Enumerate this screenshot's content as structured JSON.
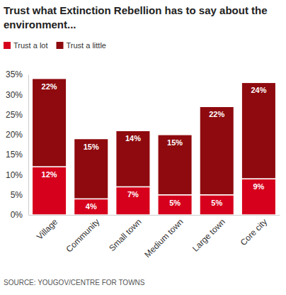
{
  "chart_data": {
    "type": "bar",
    "title": "Trust what Extinction Rebellion has to say about the environment...",
    "source": "SOURCE: YOUGOV/CENTRE FOR TOWNS",
    "categories": [
      "Village",
      "Community",
      "Small town",
      "Medium town",
      "Large town",
      "Core city"
    ],
    "series": [
      {
        "name": "Trust a lot",
        "color": "#d6001c",
        "values": [
          12,
          4,
          7,
          5,
          5,
          9
        ],
        "value_labels": [
          "12%",
          "4%",
          "7%",
          "5%",
          "5%",
          "9%"
        ]
      },
      {
        "name": "Trust a little",
        "color": "#8e0a0e",
        "values": [
          22,
          15,
          14,
          15,
          22,
          24
        ],
        "value_labels": [
          "22%",
          "15%",
          "14%",
          "15%",
          "22%",
          "24%"
        ]
      }
    ],
    "ylim": [
      0,
      35
    ],
    "yticks": [
      {
        "value": 0,
        "label": "0%"
      },
      {
        "value": 5,
        "label": "5%"
      },
      {
        "value": 10,
        "label": "10%"
      },
      {
        "value": 15,
        "label": "15%"
      },
      {
        "value": 20,
        "label": "20%"
      },
      {
        "value": 25,
        "label": "25%"
      },
      {
        "value": 30,
        "label": "30%"
      },
      {
        "value": 35,
        "label": "35%"
      }
    ],
    "stacked": true,
    "grid": false,
    "legend": "top-left",
    "data_labels": true
  }
}
